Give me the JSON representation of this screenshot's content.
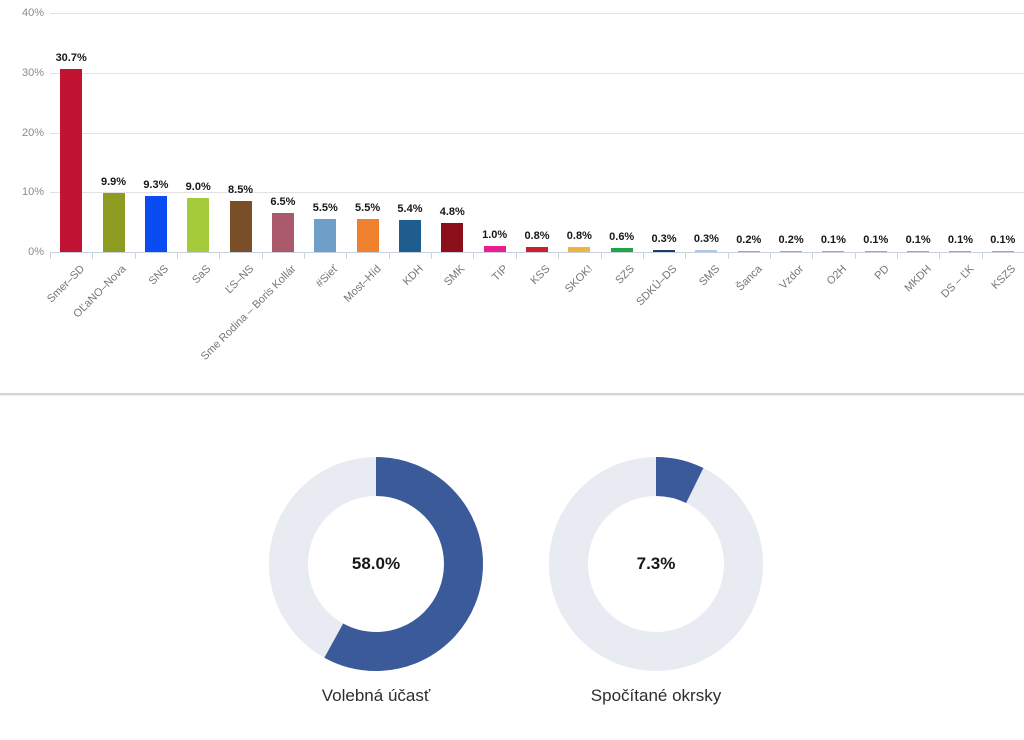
{
  "colors": {
    "donut_fill": "#3a5a9a",
    "donut_track": "#e9ebf2",
    "gridline": "#e2e2e6",
    "axis_line": "#c7d0dc",
    "value_label_text": "#17171a",
    "axis_label_text": "#76767b"
  },
  "chart_data": [
    {
      "type": "bar",
      "title": "",
      "xlabel": "",
      "ylabel": "",
      "ylim": [
        0,
        40
      ],
      "grid": true,
      "yticks": [
        {
          "label": "0%",
          "value": 0
        },
        {
          "label": "10%",
          "value": 10
        },
        {
          "label": "20%",
          "value": 20
        },
        {
          "label": "30%",
          "value": 30
        },
        {
          "label": "40%",
          "value": 40
        }
      ],
      "categories": [
        "Smer–SD",
        "OĽaNO–Nova",
        "SNS",
        "SaS",
        "ĽS–NS",
        "Sme Rodina – Boris Kollár",
        "#Sieť",
        "Most–Híd",
        "KDH",
        "SMK",
        "TIP",
        "KSS",
        "SKOK!",
        "SZS",
        "SDKÚ–DS",
        "SMS",
        "Šanca",
        "Vzdor",
        "O2H",
        "PD",
        "MKDH",
        "DS – ĽK",
        "KSZS"
      ],
      "values": [
        30.7,
        9.9,
        9.3,
        9.0,
        8.5,
        6.5,
        5.5,
        5.5,
        5.4,
        4.8,
        1.0,
        0.8,
        0.8,
        0.6,
        0.3,
        0.3,
        0.2,
        0.2,
        0.1,
        0.1,
        0.1,
        0.1,
        0.1
      ],
      "value_labels": [
        "30.7%",
        "9.9%",
        "9.3%",
        "9.0%",
        "8.5%",
        "6.5%",
        "5.5%",
        "5.5%",
        "5.4%",
        "4.8%",
        "1.0%",
        "0.8%",
        "0.8%",
        "0.6%",
        "0.3%",
        "0.3%",
        "0.2%",
        "0.2%",
        "0.1%",
        "0.1%",
        "0.1%",
        "0.1%",
        "0.1%"
      ],
      "bar_colors": [
        "#c11432",
        "#8d9b21",
        "#0b4bf2",
        "#a3cb3a",
        "#7a4e27",
        "#ab5a6b",
        "#6f9ec8",
        "#f0822f",
        "#1f5d8f",
        "#8c101c",
        "#ec1e8e",
        "#cb1f2e",
        "#ecb441",
        "#21a447",
        "#1e3b6e",
        "#a9c9ea",
        "#9aa6b5",
        "#9aa6b5",
        "#9aa6b5",
        "#9aa6b5",
        "#9aa6b5",
        "#9aa6b5",
        "#9aa6b5"
      ]
    },
    {
      "type": "donut",
      "label": "Volebná účasť",
      "value": 58.0,
      "display": "58.0%",
      "color": "#3a5a9a",
      "track": "#e9ebf2"
    },
    {
      "type": "donut",
      "label": "Spočítané okrsky",
      "value": 7.3,
      "display": "7.3%",
      "color": "#3a5a9a",
      "track": "#e9ebf2"
    }
  ]
}
